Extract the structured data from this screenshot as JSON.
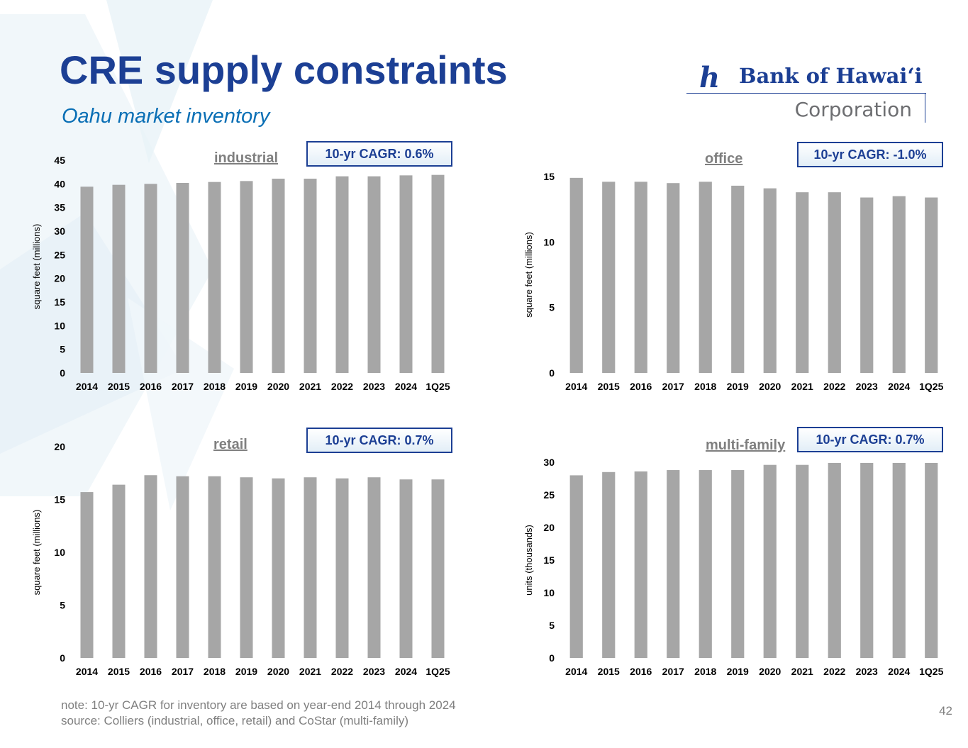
{
  "header": {
    "title": "CRE supply constraints",
    "subtitle": "Oahu market inventory"
  },
  "logo": {
    "mark": "h",
    "name": "Bank of Hawaiʻi",
    "corporation": "Corporation"
  },
  "chart_data": [
    {
      "id": "industrial",
      "type": "bar",
      "title": "industrial",
      "cagr_label": "10-yr CAGR: 0.6%",
      "ylabel": "square feet (millions)",
      "xlabel": "",
      "categories": [
        "2014",
        "2015",
        "2016",
        "2017",
        "2018",
        "2019",
        "2020",
        "2021",
        "2022",
        "2023",
        "2024",
        "1Q25"
      ],
      "values": [
        39.4,
        39.8,
        40.0,
        40.2,
        40.4,
        40.6,
        41.1,
        41.1,
        41.6,
        41.6,
        41.8,
        41.9
      ],
      "ylim": [
        0,
        45
      ],
      "yticks": [
        0,
        5,
        10,
        15,
        20,
        25,
        30,
        35,
        40,
        45
      ],
      "color": "#a6a6a6"
    },
    {
      "id": "office",
      "type": "bar",
      "title": "office",
      "cagr_label": "10-yr CAGR: -1.0%",
      "ylabel": "square feet (millions)",
      "xlabel": "",
      "categories": [
        "2014",
        "2015",
        "2016",
        "2017",
        "2018",
        "2019",
        "2020",
        "2021",
        "2022",
        "2023",
        "2024",
        "1Q25"
      ],
      "values": [
        14.9,
        14.6,
        14.6,
        14.5,
        14.6,
        14.3,
        14.1,
        13.8,
        13.8,
        13.4,
        13.5,
        13.4
      ],
      "ylim": [
        0,
        15
      ],
      "yticks": [
        0,
        5,
        10,
        15
      ],
      "color": "#a6a6a6"
    },
    {
      "id": "retail",
      "type": "bar",
      "title": "retail",
      "cagr_label": "10-yr CAGR: 0.7%",
      "ylabel": "square feet (millions)",
      "xlabel": "",
      "categories": [
        "2014",
        "2015",
        "2016",
        "2017",
        "2018",
        "2019",
        "2020",
        "2021",
        "2022",
        "2023",
        "2024",
        "1Q25"
      ],
      "values": [
        15.7,
        16.4,
        17.3,
        17.2,
        17.2,
        17.1,
        17.0,
        17.1,
        17.0,
        17.1,
        16.9,
        16.9
      ],
      "ylim": [
        0,
        20
      ],
      "yticks": [
        0,
        5,
        10,
        15,
        20
      ],
      "color": "#a6a6a6"
    },
    {
      "id": "multifamily",
      "type": "bar",
      "title": "multi-family",
      "cagr_label": "10-yr CAGR: 0.7%",
      "ylabel": "units (thousands)",
      "xlabel": "",
      "categories": [
        "2014",
        "2015",
        "2016",
        "2017",
        "2018",
        "2019",
        "2020",
        "2021",
        "2022",
        "2023",
        "2024",
        "1Q25"
      ],
      "values": [
        28.0,
        28.5,
        28.6,
        28.8,
        28.8,
        28.8,
        29.6,
        29.6,
        29.9,
        29.9,
        29.9,
        29.9
      ],
      "ylim": [
        0,
        30
      ],
      "yticks": [
        0,
        5,
        10,
        15,
        20,
        25,
        30
      ],
      "color": "#a6a6a6"
    }
  ],
  "footer": {
    "note": "note: 10-yr CAGR for inventory are based on year-end 2014 through 2024",
    "source": "source: Colliers (industrial, office, retail) and CoStar (multi-family)",
    "page_number": "42"
  }
}
